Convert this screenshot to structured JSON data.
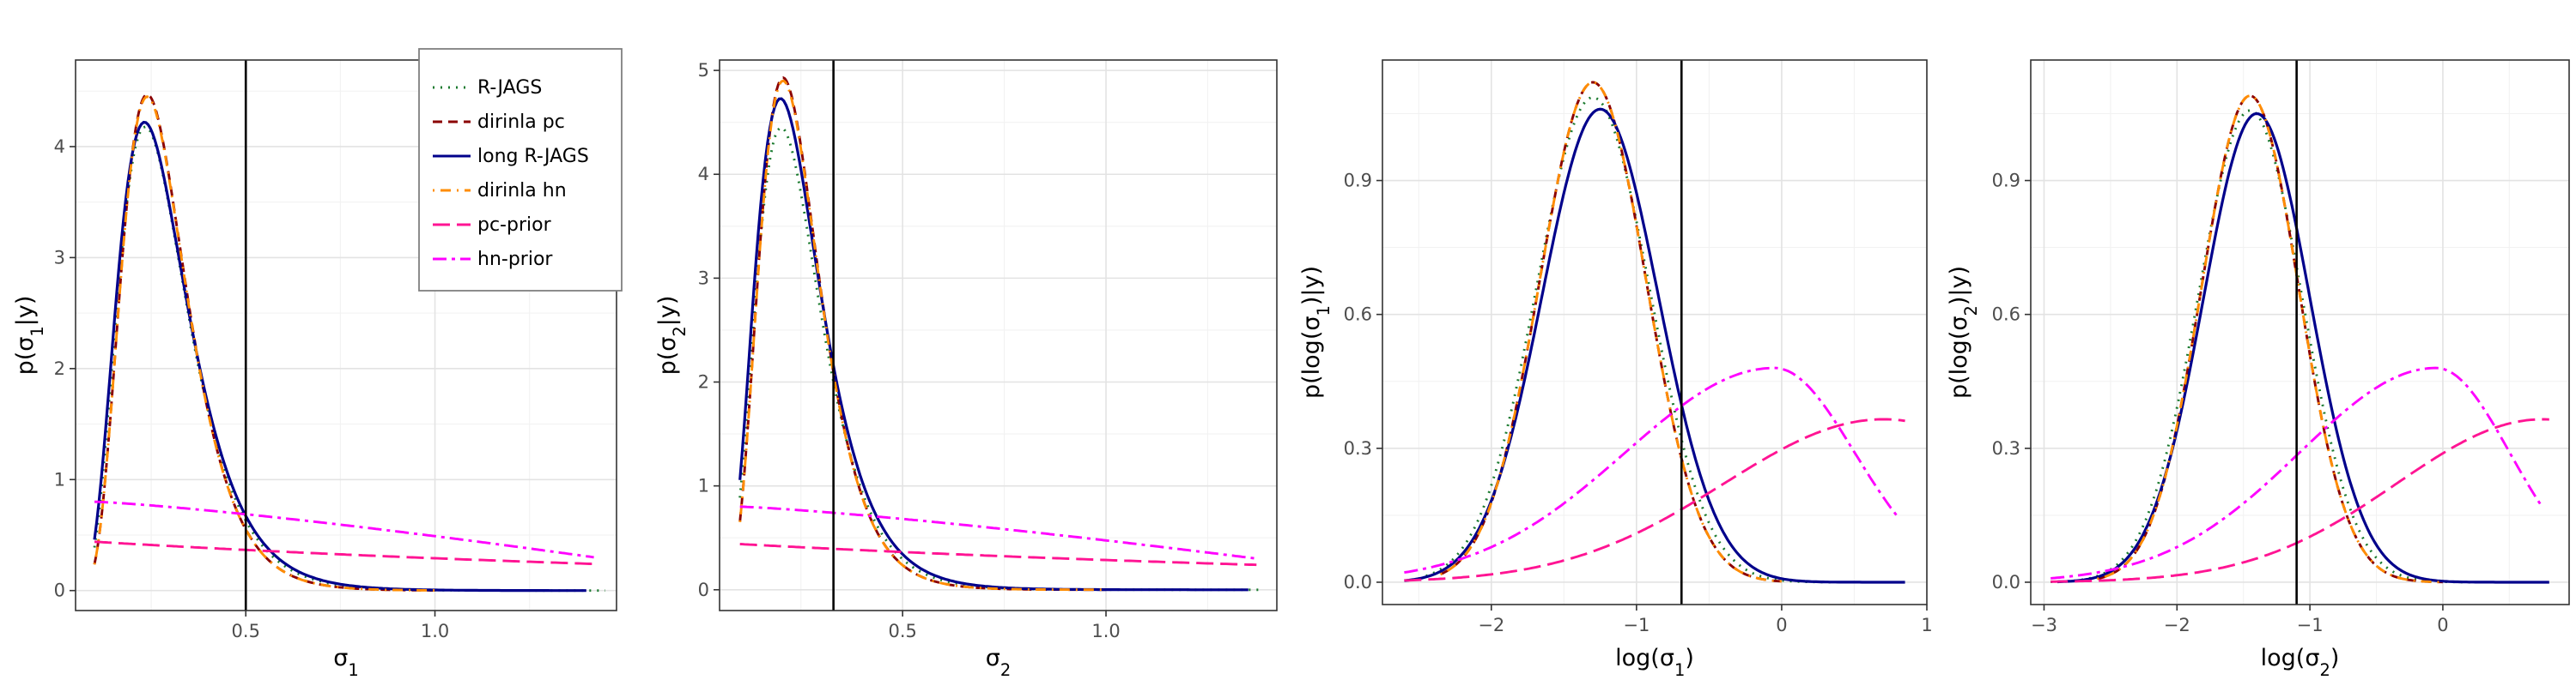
{
  "chart_data": [
    {
      "type": "line",
      "xlabel": "σ1",
      "ylabel": "p(σ1|y)",
      "xlim": [
        0.05,
        1.48
      ],
      "ylim": [
        -0.18,
        4.78
      ],
      "xticks": [
        0.5,
        1.0
      ],
      "xtick_labels": [
        "0.5",
        "1.0"
      ],
      "yticks": [
        0,
        1,
        2,
        3,
        4
      ],
      "ytick_labels": [
        "0",
        "1",
        "2",
        "3",
        "4"
      ],
      "vline": 0.5,
      "grid": true,
      "legend": "top-right",
      "posterior": {
        "mu": -1.3,
        "s": 0.375,
        "scale": 1.0
      },
      "series": [
        {
          "name": "R-JAGS",
          "x_end": 1.45,
          "values_at": {
            "0.24": 4.2,
            "0.5": 0.66,
            "1.0": 0.03
          }
        },
        {
          "name": "dirinla pc",
          "x_end": 1.0,
          "values_at": {
            "0.24": 4.45,
            "0.5": 0.62,
            "1.0": 0.01
          }
        },
        {
          "name": "long R-JAGS",
          "x_end": 1.4,
          "values_at": {
            "0.24": 4.22,
            "0.5": 0.68,
            "1.0": 0.03
          }
        },
        {
          "name": "dirinla hn",
          "x_end": 1.0,
          "values_at": {
            "0.24": 4.45,
            "0.5": 0.62,
            "1.0": 0.01
          }
        },
        {
          "name": "pc-prior",
          "x": [
            0.1,
            1.42
          ],
          "y": [
            0.44,
            0.24
          ]
        },
        {
          "name": "hn-prior",
          "x": [
            0.1,
            1.42
          ],
          "y": [
            0.8,
            0.3
          ]
        }
      ]
    },
    {
      "type": "line",
      "xlabel": "σ2",
      "ylabel": "p(σ2|y)",
      "xlim": [
        0.05,
        1.42
      ],
      "ylim": [
        -0.2,
        5.1
      ],
      "xticks": [
        0.5,
        1.0
      ],
      "xtick_labels": [
        "0.5",
        "1.0"
      ],
      "yticks": [
        0,
        1,
        2,
        3,
        4,
        5
      ],
      "ytick_labels": [
        "0",
        "1",
        "2",
        "3",
        "4",
        "5"
      ],
      "vline": 0.33,
      "grid": true,
      "posterior": {
        "mu": -1.45,
        "s": 0.375,
        "scale": 1.0
      },
      "series": [
        {
          "name": "R-JAGS",
          "x_end": 1.38,
          "values_at": {
            "0.2": 4.4,
            "0.33": 2.2
          }
        },
        {
          "name": "dirinla pc",
          "x_end": 1.0,
          "values_at": {
            "0.2": 4.9,
            "0.33": 2.2
          }
        },
        {
          "name": "long R-JAGS",
          "x_end": 1.35,
          "values_at": {
            "0.2": 4.7,
            "0.33": 2.2
          }
        },
        {
          "name": "dirinla hn",
          "x_end": 1.0,
          "values_at": {
            "0.2": 4.9,
            "0.33": 2.2
          }
        },
        {
          "name": "pc-prior",
          "x": [
            0.1,
            1.37
          ],
          "y": [
            0.44,
            0.24
          ]
        },
        {
          "name": "hn-prior",
          "x": [
            0.1,
            1.37
          ],
          "y": [
            0.8,
            0.3
          ]
        }
      ]
    },
    {
      "type": "line",
      "xlabel": "log(σ1)",
      "ylabel": "p(log(σ1)|y)",
      "xlim": [
        -2.75,
        1.0
      ],
      "ylim": [
        -0.05,
        1.17
      ],
      "xticks": [
        -2,
        -1,
        0,
        1
      ],
      "xtick_labels": [
        "−2",
        "−1",
        "0",
        "1"
      ],
      "yticks": [
        0.0,
        0.3,
        0.6,
        0.9
      ],
      "ytick_labels": [
        "0.0",
        "0.3",
        "0.6",
        "0.9"
      ],
      "vline": -0.69,
      "grid": true,
      "posterior": {
        "mu": -1.3,
        "s": 0.375,
        "peak": 1.12,
        "peak_long": 1.06
      },
      "series": [
        {
          "name": "R-JAGS",
          "x_range": [
            -2.45,
            0.85
          ]
        },
        {
          "name": "dirinla pc",
          "x_range": [
            -2.35,
            0.0
          ]
        },
        {
          "name": "long R-JAGS",
          "x_range": [
            -2.6,
            0.85
          ]
        },
        {
          "name": "dirinla hn",
          "x_range": [
            -2.35,
            0.0
          ]
        },
        {
          "name": "pc-prior",
          "x_range": [
            -2.6,
            0.85
          ],
          "peak_at": 0.7,
          "peak": 0.365
        },
        {
          "name": "hn-prior",
          "x_range": [
            -2.6,
            0.8
          ],
          "peak_at": -0.05,
          "peak": 0.48
        }
      ]
    },
    {
      "type": "line",
      "xlabel": "log(σ2)",
      "ylabel": "p(log(σ2)|y)",
      "xlim": [
        -3.1,
        0.95
      ],
      "ylim": [
        -0.05,
        1.17
      ],
      "xticks": [
        -3,
        -2,
        -1,
        0
      ],
      "xtick_labels": [
        "−3",
        "−2",
        "−1",
        "0"
      ],
      "yticks": [
        0.0,
        0.3,
        0.6,
        0.9
      ],
      "ytick_labels": [
        "0.0",
        "0.3",
        "0.6",
        "0.9"
      ],
      "vline": -1.1,
      "grid": true,
      "posterior": {
        "mu": -1.45,
        "s": 0.375,
        "peak": 1.09,
        "peak_long": 1.05
      },
      "series": [
        {
          "name": "R-JAGS",
          "x_range": [
            -2.95,
            0.8
          ]
        },
        {
          "name": "dirinla pc",
          "x_range": [
            -2.6,
            0.0
          ]
        },
        {
          "name": "long R-JAGS",
          "x_range": [
            -2.9,
            0.8
          ]
        },
        {
          "name": "dirinla hn",
          "x_range": [
            -2.6,
            0.0
          ]
        },
        {
          "name": "pc-prior",
          "x_range": [
            -2.95,
            0.8
          ],
          "peak_at": 0.75,
          "peak": 0.365
        },
        {
          "name": "hn-prior",
          "x_range": [
            -2.95,
            0.75
          ],
          "peak_at": -0.05,
          "peak": 0.48
        }
      ]
    }
  ],
  "legend": {
    "items": [
      {
        "label": "R-JAGS",
        "color": "#1a7a2e",
        "dash": "dotted"
      },
      {
        "label": "dirinla pc",
        "color": "#8b0000",
        "dash": "dashed"
      },
      {
        "label": "long R-JAGS",
        "color": "#00008b",
        "dash": "solid"
      },
      {
        "label": "dirinla hn",
        "color": "#ff8c00",
        "dash": "dotdash"
      },
      {
        "label": "pc-prior",
        "color": "#ff1493",
        "dash": "longdash"
      },
      {
        "label": "hn-prior",
        "color": "#ff00ff",
        "dash": "twodash"
      }
    ]
  },
  "colors": {
    "R-JAGS": "#1a7a2e",
    "dirinla pc": "#8b0000",
    "long R-JAGS": "#00008b",
    "dirinla hn": "#ff8c00",
    "pc-prior": "#ff1493",
    "hn-prior": "#ff00ff"
  }
}
